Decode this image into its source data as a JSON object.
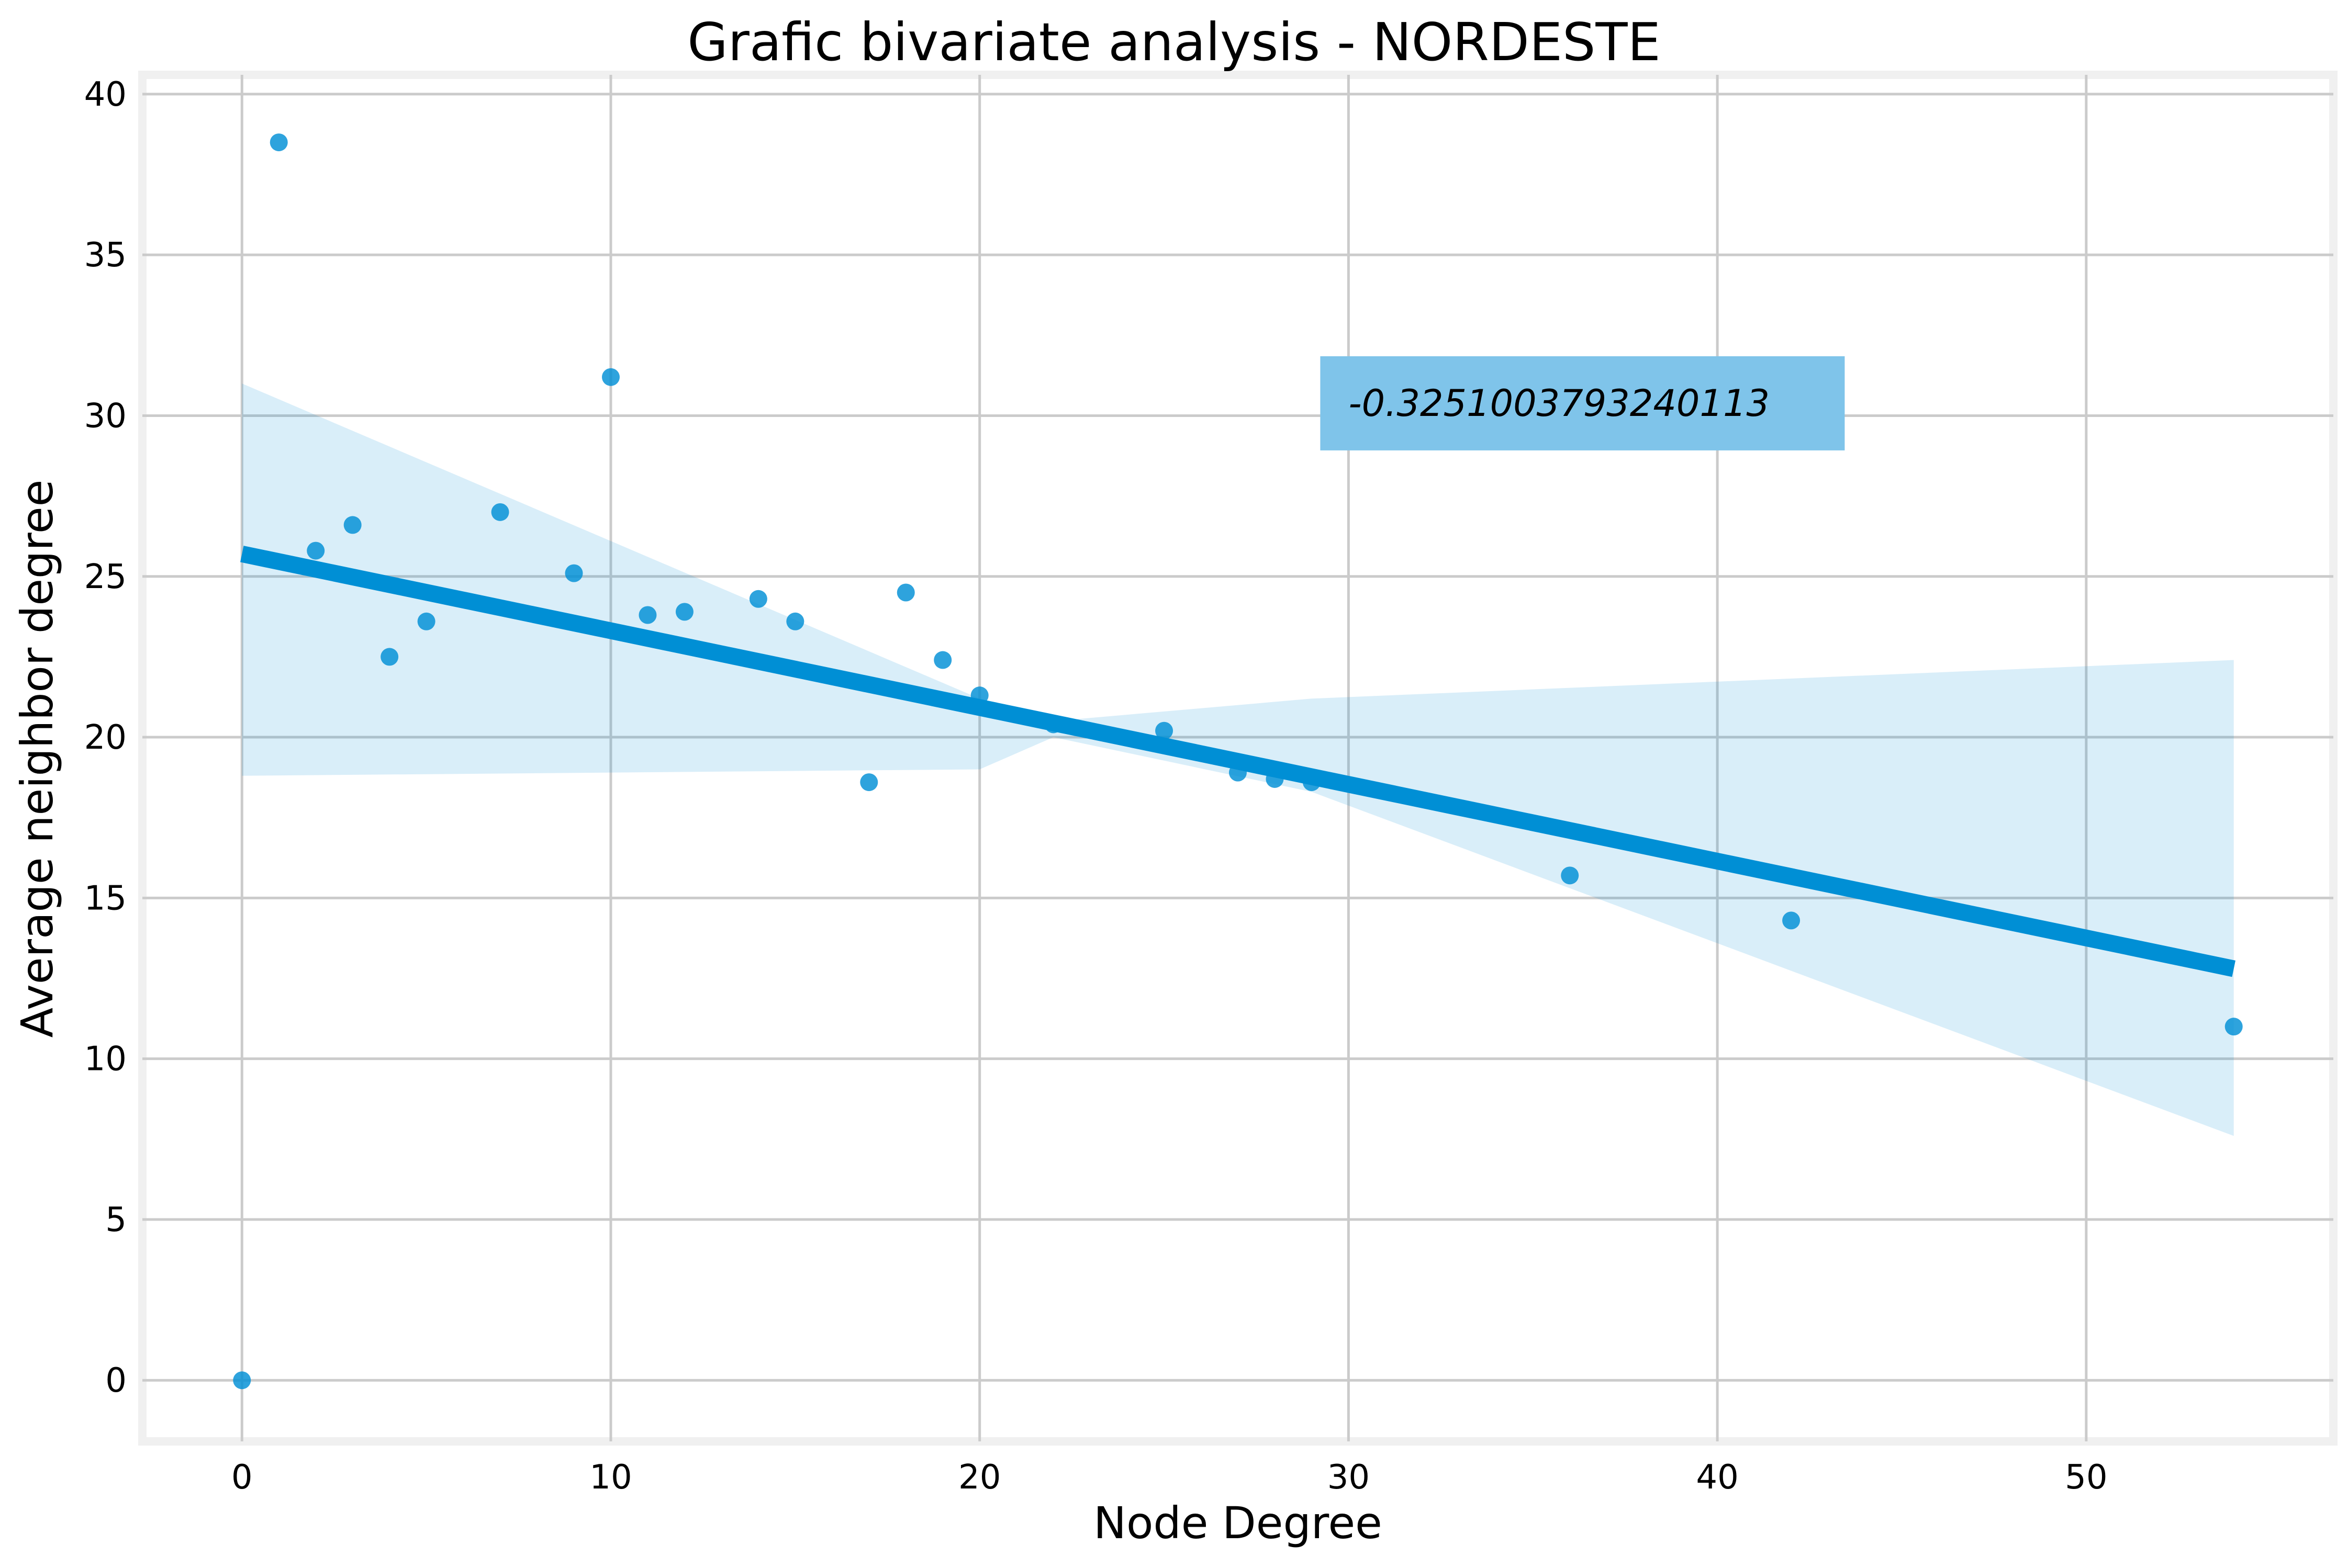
{
  "chart_data": {
    "type": "scatter",
    "title": "Grafic bivariate analysis - NORDESTE",
    "xlabel": "Node Degree",
    "ylabel": "Average neighbor degree",
    "xlim": [
      -2.7,
      56.7
    ],
    "ylim": [
      -1.9,
      40.6
    ],
    "xticks": [
      0,
      10,
      20,
      30,
      40,
      50
    ],
    "yticks": [
      0,
      5,
      10,
      15,
      20,
      25,
      30,
      35,
      40
    ],
    "grid": true,
    "colors": {
      "points": "#008fd5",
      "regression_line": "#008fd5",
      "confidence_band": "#008fd5",
      "annotation_box": "#7fc4ea",
      "grid": "#cbcbcb",
      "frame": "#f0f0f0"
    },
    "points": [
      {
        "x": 0,
        "y": 0.0
      },
      {
        "x": 1,
        "y": 38.5
      },
      {
        "x": 2,
        "y": 25.8
      },
      {
        "x": 3,
        "y": 26.6
      },
      {
        "x": 4,
        "y": 22.5
      },
      {
        "x": 5,
        "y": 23.6
      },
      {
        "x": 7,
        "y": 27.0
      },
      {
        "x": 9,
        "y": 25.1
      },
      {
        "x": 10,
        "y": 31.2
      },
      {
        "x": 11,
        "y": 23.8
      },
      {
        "x": 12,
        "y": 23.9
      },
      {
        "x": 14,
        "y": 24.3
      },
      {
        "x": 15,
        "y": 23.6
      },
      {
        "x": 17,
        "y": 18.6
      },
      {
        "x": 18,
        "y": 24.5
      },
      {
        "x": 19,
        "y": 22.4
      },
      {
        "x": 20,
        "y": 21.3
      },
      {
        "x": 22,
        "y": 20.4
      },
      {
        "x": 25,
        "y": 20.2
      },
      {
        "x": 27,
        "y": 18.9
      },
      {
        "x": 28,
        "y": 18.7
      },
      {
        "x": 29,
        "y": 18.6
      },
      {
        "x": 36,
        "y": 15.7
      },
      {
        "x": 42,
        "y": 14.3
      },
      {
        "x": 54,
        "y": 11.0
      }
    ],
    "regression": {
      "x": [
        0,
        54
      ],
      "y": [
        25.7,
        12.8
      ]
    },
    "confidence_band": {
      "x": [
        0,
        20,
        22,
        29,
        54
      ],
      "upper": [
        31.0,
        21.2,
        20.5,
        21.2,
        22.4
      ],
      "lower": [
        18.8,
        19.0,
        20.0,
        18.3,
        7.6
      ]
    },
    "annotation": {
      "text": "-0.3251003793240113",
      "x": 30,
      "y": 30.4
    }
  }
}
